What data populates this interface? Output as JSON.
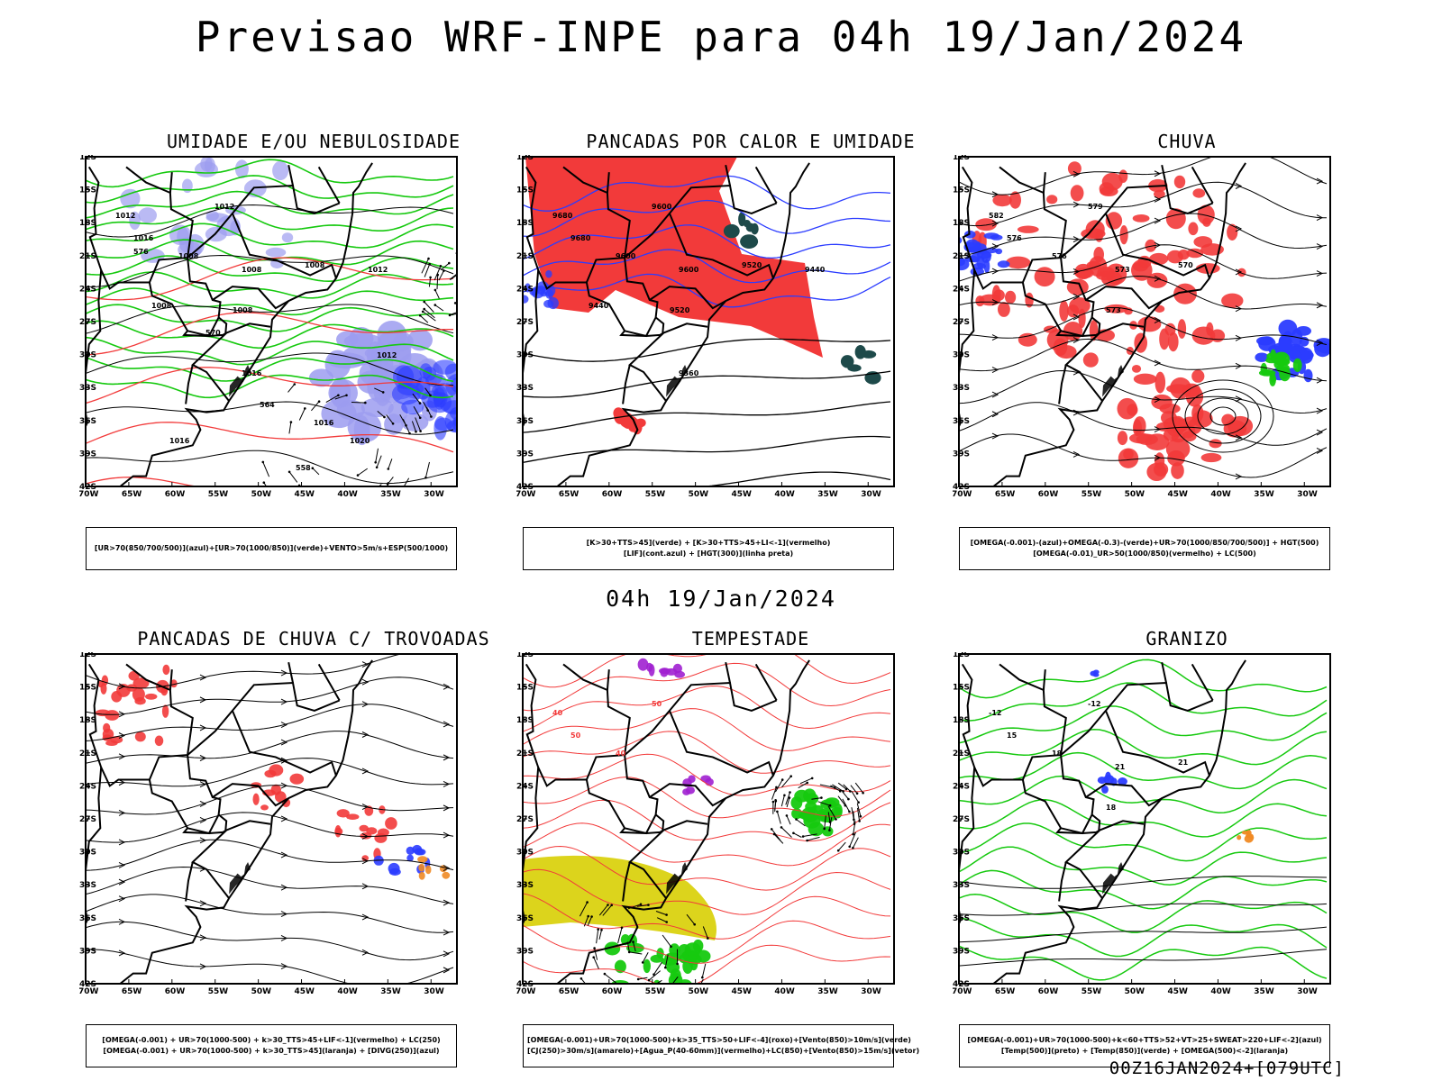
{
  "header": {
    "title": "Previsao WRF-INPE  para 04h 19/Jan/2024"
  },
  "middle_label": "04h 19/Jan/2024",
  "footer": {
    "run_stamp": "00Z16JAN2024+[079UTC]"
  },
  "axes": {
    "lat_labels": [
      "12S",
      "15S",
      "18S",
      "21S",
      "24S",
      "27S",
      "30S",
      "33S",
      "36S",
      "39S",
      "42S"
    ],
    "lon_labels": [
      "70W",
      "65W",
      "60W",
      "55W",
      "50W",
      "45W",
      "40W",
      "35W",
      "30W"
    ]
  },
  "panels": [
    {
      "id": "umidade",
      "title": "UMIDADE E/OU NEBULOSIDADE",
      "legend": [
        "[UR>70(850/700/500)](azul)+[UR>70(1000/850)](verde)+VENTO>5m/s+ESP(500/1000)"
      ],
      "contour_labels": [
        "1012",
        "1012",
        "1016",
        "1008",
        "1008",
        "1008",
        "1008",
        "1008",
        "1012",
        "1016",
        "1016",
        "1012",
        "1016",
        "1020",
        "576",
        "570",
        "564",
        "558"
      ]
    },
    {
      "id": "pancadas-calor",
      "title": "PANCADAS POR CALOR E UMIDADE",
      "legend": [
        "[K>30+TTS>45](verde) + [K>30+TTS>45+LI<-1](vermelho)",
        "[LIF](cont.azul) + [HGT(300)](linha preta)"
      ],
      "contour_labels": [
        "9680",
        "9600",
        "9680",
        "9600",
        "9600",
        "9520",
        "9520",
        "9440",
        "9440",
        "9360"
      ]
    },
    {
      "id": "chuva",
      "title": "CHUVA",
      "legend": [
        "[OMEGA(-0.001)-(azul)+OMEGA(-0.3)-(verde)+UR>70(1000/850/700/500)] + HGT(500)",
        "[OMEGA(-0.01)_UR>50(1000/850)(vermelho) + LC(500)"
      ],
      "contour_labels": [
        "582",
        "579",
        "576",
        "576",
        "573",
        "570",
        "573"
      ]
    },
    {
      "id": "pancadas-trovoadas",
      "title": "PANCADAS DE CHUVA C/ TROVOADAS",
      "legend": [
        "[OMEGA(-0.001) + UR>70(1000-500) + k>30_TTS>45+LIF<-1](vermelho) + LC(250)",
        "[OMEGA(-0.001) + UR>70(1000-500) + k>30_TTS>45](laranja) + [DIVG(250)](azul)"
      ],
      "contour_labels": []
    },
    {
      "id": "tempestade",
      "title": "TEMPESTADE",
      "legend": [
        "[OMEGA(-0.001)+UR>70(1000-500)+k>35_TTS>50+LIF<-4](roxo)+[Vento(850)>10m/s](verde)",
        "[CJ(250)>30m/s](amarelo)+[Agua_P(40-60mm)](vermelho)+LC(850)+[Vento(850)>15m/s](vetor)"
      ],
      "contour_labels": [
        "40",
        "50",
        "50",
        "40"
      ]
    },
    {
      "id": "granizo",
      "title": "GRANIZO",
      "legend": [
        "[OMEGA(-0.001)+UR>70(1000-500)+k<60+TTS>52+VT>25+SWEAT>220+LIF<-2](azul)",
        "[Temp(500)](preto) + [Temp(850)](verde) + [OMEGA(500)<-2](laranja)"
      ],
      "contour_labels": [
        "-12",
        "-12",
        "15",
        "18",
        "21",
        "21",
        "18"
      ]
    }
  ],
  "colors": {
    "blue": "#2b3cff",
    "lavender": "#9c9cf0",
    "green": "#16c90f",
    "red": "#f23a3a",
    "orange": "#f08a24",
    "yellow": "#dcd41c",
    "purple": "#a020d0",
    "darkteal": "#1e4a4a"
  }
}
